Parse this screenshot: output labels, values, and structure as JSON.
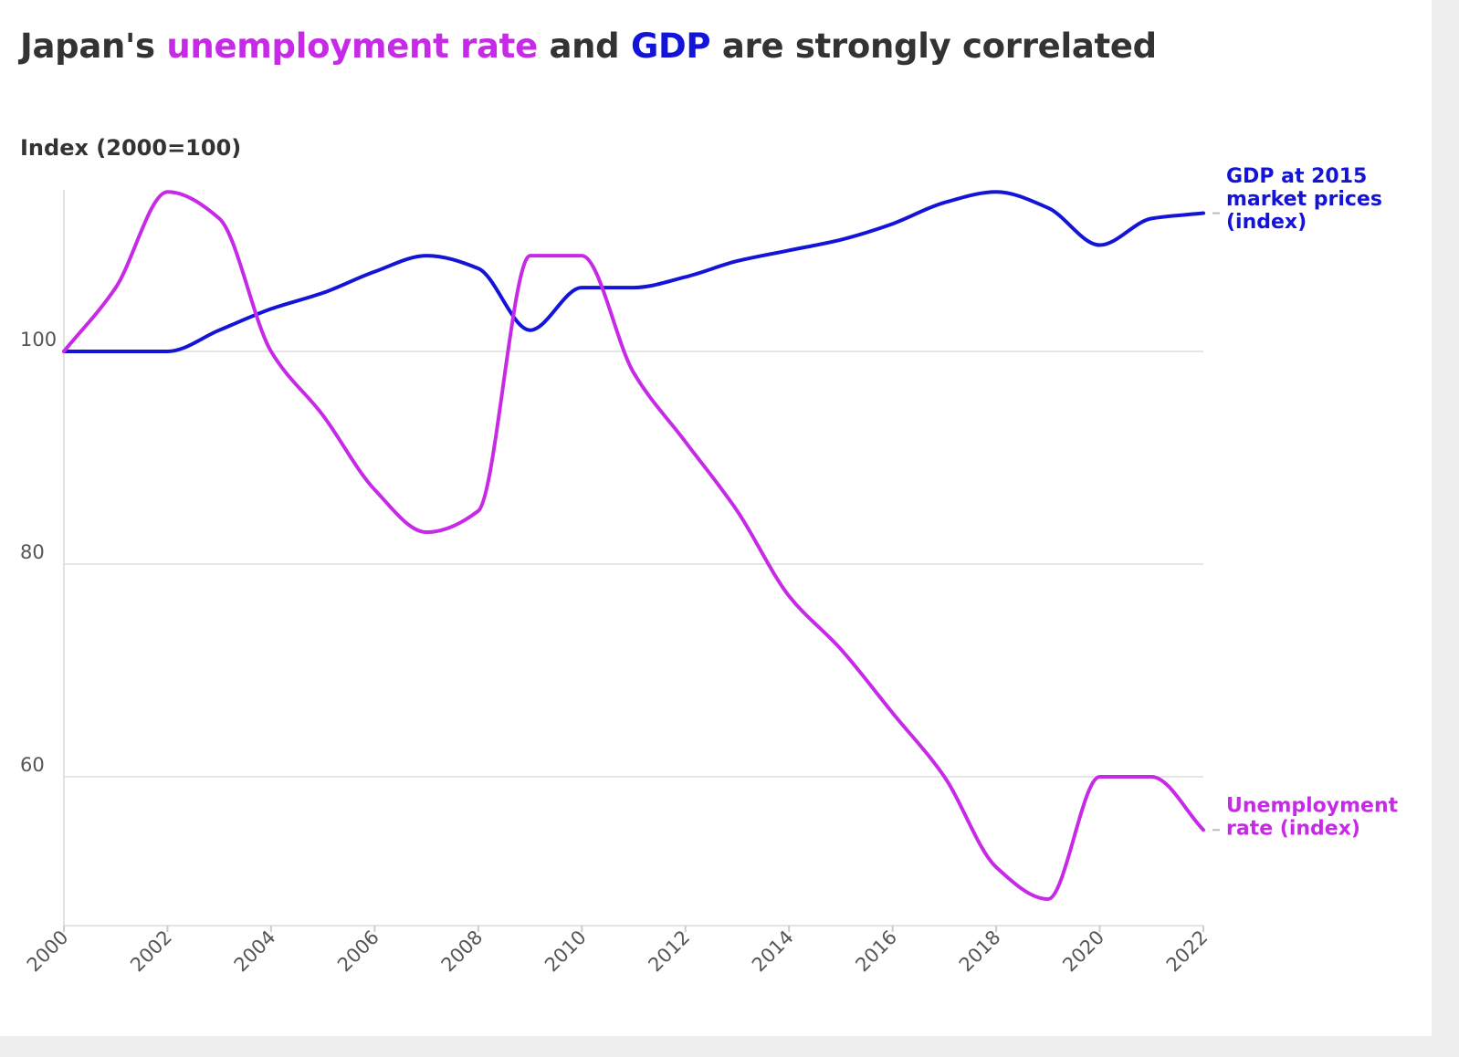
{
  "title": {
    "pre": "Japan's ",
    "hl1": "unemployment rate",
    "mid": " and ",
    "hl2": "GDP",
    "post": " are strongly correlated"
  },
  "colors": {
    "unemployment": "#c72ae6",
    "gdp": "#1414d9",
    "text": "#333333",
    "grid": "#e6e6e6"
  },
  "chart_data": {
    "type": "line",
    "ylabel": "Index (2000=100)",
    "xlabel": "",
    "x": [
      2000,
      2001,
      2002,
      2003,
      2004,
      2005,
      2006,
      2007,
      2008,
      2009,
      2010,
      2011,
      2012,
      2013,
      2014,
      2015,
      2016,
      2017,
      2018,
      2019,
      2020,
      2021,
      2022
    ],
    "xticks": [
      "2000",
      "2002",
      "2004",
      "2006",
      "2008",
      "2010",
      "2012",
      "2014",
      "2016",
      "2018",
      "2020",
      "2022"
    ],
    "yticks": [
      "60",
      "80",
      "100"
    ],
    "ylim": [
      46,
      117
    ],
    "grid": true,
    "series": [
      {
        "name": "GDP at 2015 market prices (index)",
        "label_lines": [
          "GDP at 2015",
          "market prices",
          "(index)"
        ],
        "color": "#1414d9",
        "values": [
          100,
          100,
          100,
          102,
          104,
          105.5,
          107.5,
          109,
          107.8,
          102,
          106,
          106,
          107,
          108.5,
          109.5,
          110.5,
          112,
          114,
          115,
          113.5,
          110,
          112.5,
          113
        ]
      },
      {
        "name": "Unemployment rate (index)",
        "label_lines": [
          "Unemployment",
          "rate (index)"
        ],
        "color": "#c72ae6",
        "values": [
          100,
          106,
          115,
          112.5,
          100,
          94,
          87,
          83,
          85,
          109,
          109,
          98,
          91.5,
          85,
          77,
          72,
          66,
          60,
          51.5,
          48.5,
          60,
          60,
          55
        ]
      }
    ]
  }
}
